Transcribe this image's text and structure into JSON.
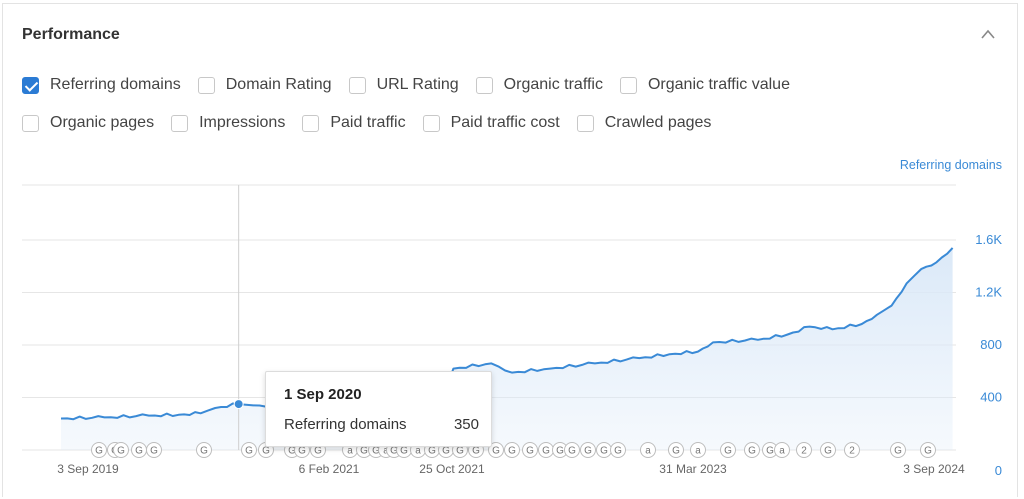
{
  "panel": {
    "title": "Performance",
    "collapse_icon": "chevron-up-icon"
  },
  "checkboxes": {
    "row1": [
      {
        "label": "Referring domains",
        "checked": true
      },
      {
        "label": "Domain Rating",
        "checked": false
      },
      {
        "label": "URL Rating",
        "checked": false
      },
      {
        "label": "Organic traffic",
        "checked": false
      },
      {
        "label": "Organic traffic value",
        "checked": false
      }
    ],
    "row2": [
      {
        "label": "Organic pages",
        "checked": false
      },
      {
        "label": "Impressions",
        "checked": false
      },
      {
        "label": "Paid traffic",
        "checked": false
      },
      {
        "label": "Paid traffic cost",
        "checked": false
      },
      {
        "label": "Crawled pages",
        "checked": false
      }
    ]
  },
  "colors": {
    "accent": "#2b7bd4",
    "series_line": "#3a8ad6",
    "area_fill": "#dbe9f8"
  },
  "tooltip": {
    "date": "1 Sep 2020",
    "series_name": "Referring domains",
    "value": "350"
  },
  "chart_data": {
    "type": "area",
    "series": [
      {
        "name": "Referring domains",
        "x": [
          "2019-09-03",
          "2019-12-01",
          "2020-03-01",
          "2020-05-01",
          "2020-06-15",
          "2020-07-15",
          "2020-09-01",
          "2020-10-01",
          "2021-02-06",
          "2021-06-01",
          "2021-09-01",
          "2021-10-25",
          "2021-11-15",
          "2022-02-01",
          "2022-03-15",
          "2022-06-01",
          "2022-09-01",
          "2022-12-01",
          "2023-02-01",
          "2023-03-31",
          "2023-05-01",
          "2023-08-01",
          "2023-10-01",
          "2023-11-15",
          "2024-01-01",
          "2024-03-01",
          "2024-04-01",
          "2024-05-01",
          "2024-06-01",
          "2024-07-01",
          "2024-08-01",
          "2024-09-03"
        ],
        "values": [
          240,
          248,
          262,
          268,
          280,
          320,
          350,
          340,
          330,
          360,
          380,
          400,
          620,
          660,
          590,
          620,
          660,
          700,
          730,
          750,
          820,
          840,
          880,
          940,
          920,
          960,
          1030,
          1100,
          1270,
          1380,
          1430,
          1540
        ]
      }
    ],
    "x_ticks": [
      "3 Sep 2019",
      "6 Feb 2021",
      "25 Oct 2021",
      "31 Mar 2023",
      "3 Sep 2024"
    ],
    "y_ticks": [
      "0",
      "400",
      "800",
      "1.2K",
      "1.6K"
    ],
    "ylim": [
      0,
      1600
    ],
    "y_axis_position": "right",
    "ylabel": "Referring domains",
    "grid": true,
    "highlight": {
      "x": "2020-09-01",
      "value": 350
    },
    "event_markers": [
      "G",
      "G",
      "G",
      "G",
      "G",
      "G",
      "G",
      "G",
      "G",
      "G",
      "G",
      "a",
      "G",
      "G",
      "a",
      "G",
      "G",
      "a",
      "G",
      "G",
      "G",
      "G",
      "G",
      "G",
      "G",
      "G",
      "G",
      "G",
      "G",
      "G",
      "G",
      "a",
      "G",
      "a",
      "G",
      "G",
      "G",
      "a",
      "2",
      "G",
      "2"
    ]
  }
}
